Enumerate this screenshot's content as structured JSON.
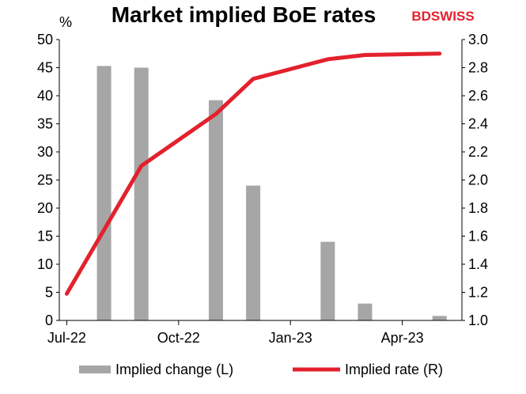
{
  "brand": {
    "prefix": "BD",
    "name": "SWISS",
    "color": "#e3212d"
  },
  "colors": {
    "bars": "#a6a6a6",
    "line": "#e3212d"
  },
  "chart_data": {
    "type": "bar+line",
    "title": "Market implied BoE rates",
    "ylabel_left": "%",
    "ylim_left": [
      0,
      50
    ],
    "ylim_right": [
      1.0,
      3.0
    ],
    "yticks_left": [
      "0",
      "5",
      "10",
      "15",
      "20",
      "25",
      "30",
      "35",
      "40",
      "45",
      "50"
    ],
    "yticks_right": [
      "1.0",
      "1.2",
      "1.4",
      "1.6",
      "1.8",
      "2.0",
      "2.2",
      "2.4",
      "2.6",
      "2.8",
      "3.0"
    ],
    "xticks": [
      {
        "label": "Jul-22",
        "index": 0
      },
      {
        "label": "Oct-22",
        "index": 3
      },
      {
        "label": "Jan-23",
        "index": 6
      },
      {
        "label": "Apr-23",
        "index": 9
      }
    ],
    "x_range": [
      -0.2,
      10.6
    ],
    "series": [
      {
        "name": "Implied change (L)",
        "type": "bar",
        "axis": "left",
        "points": [
          {
            "x": 1.0,
            "y": 45.3
          },
          {
            "x": 2.0,
            "y": 45.0
          },
          {
            "x": 4.0,
            "y": 39.2
          },
          {
            "x": 5.0,
            "y": 24.0
          },
          {
            "x": 7.0,
            "y": 14.0
          },
          {
            "x": 8.0,
            "y": 3.0
          },
          {
            "x": 10.0,
            "y": 0.8
          }
        ]
      },
      {
        "name": "Implied rate (R)",
        "type": "line",
        "axis": "right",
        "points": [
          {
            "x": 0.0,
            "y": 1.19
          },
          {
            "x": 2.0,
            "y": 2.1
          },
          {
            "x": 4.0,
            "y": 2.47
          },
          {
            "x": 5.0,
            "y": 2.72
          },
          {
            "x": 7.0,
            "y": 2.86
          },
          {
            "x": 8.0,
            "y": 2.89
          },
          {
            "x": 10.0,
            "y": 2.9
          }
        ]
      }
    ],
    "legend": {
      "position": "bottom",
      "entries": [
        "Implied change (L)",
        "Implied rate (R)"
      ]
    },
    "grid": false
  }
}
